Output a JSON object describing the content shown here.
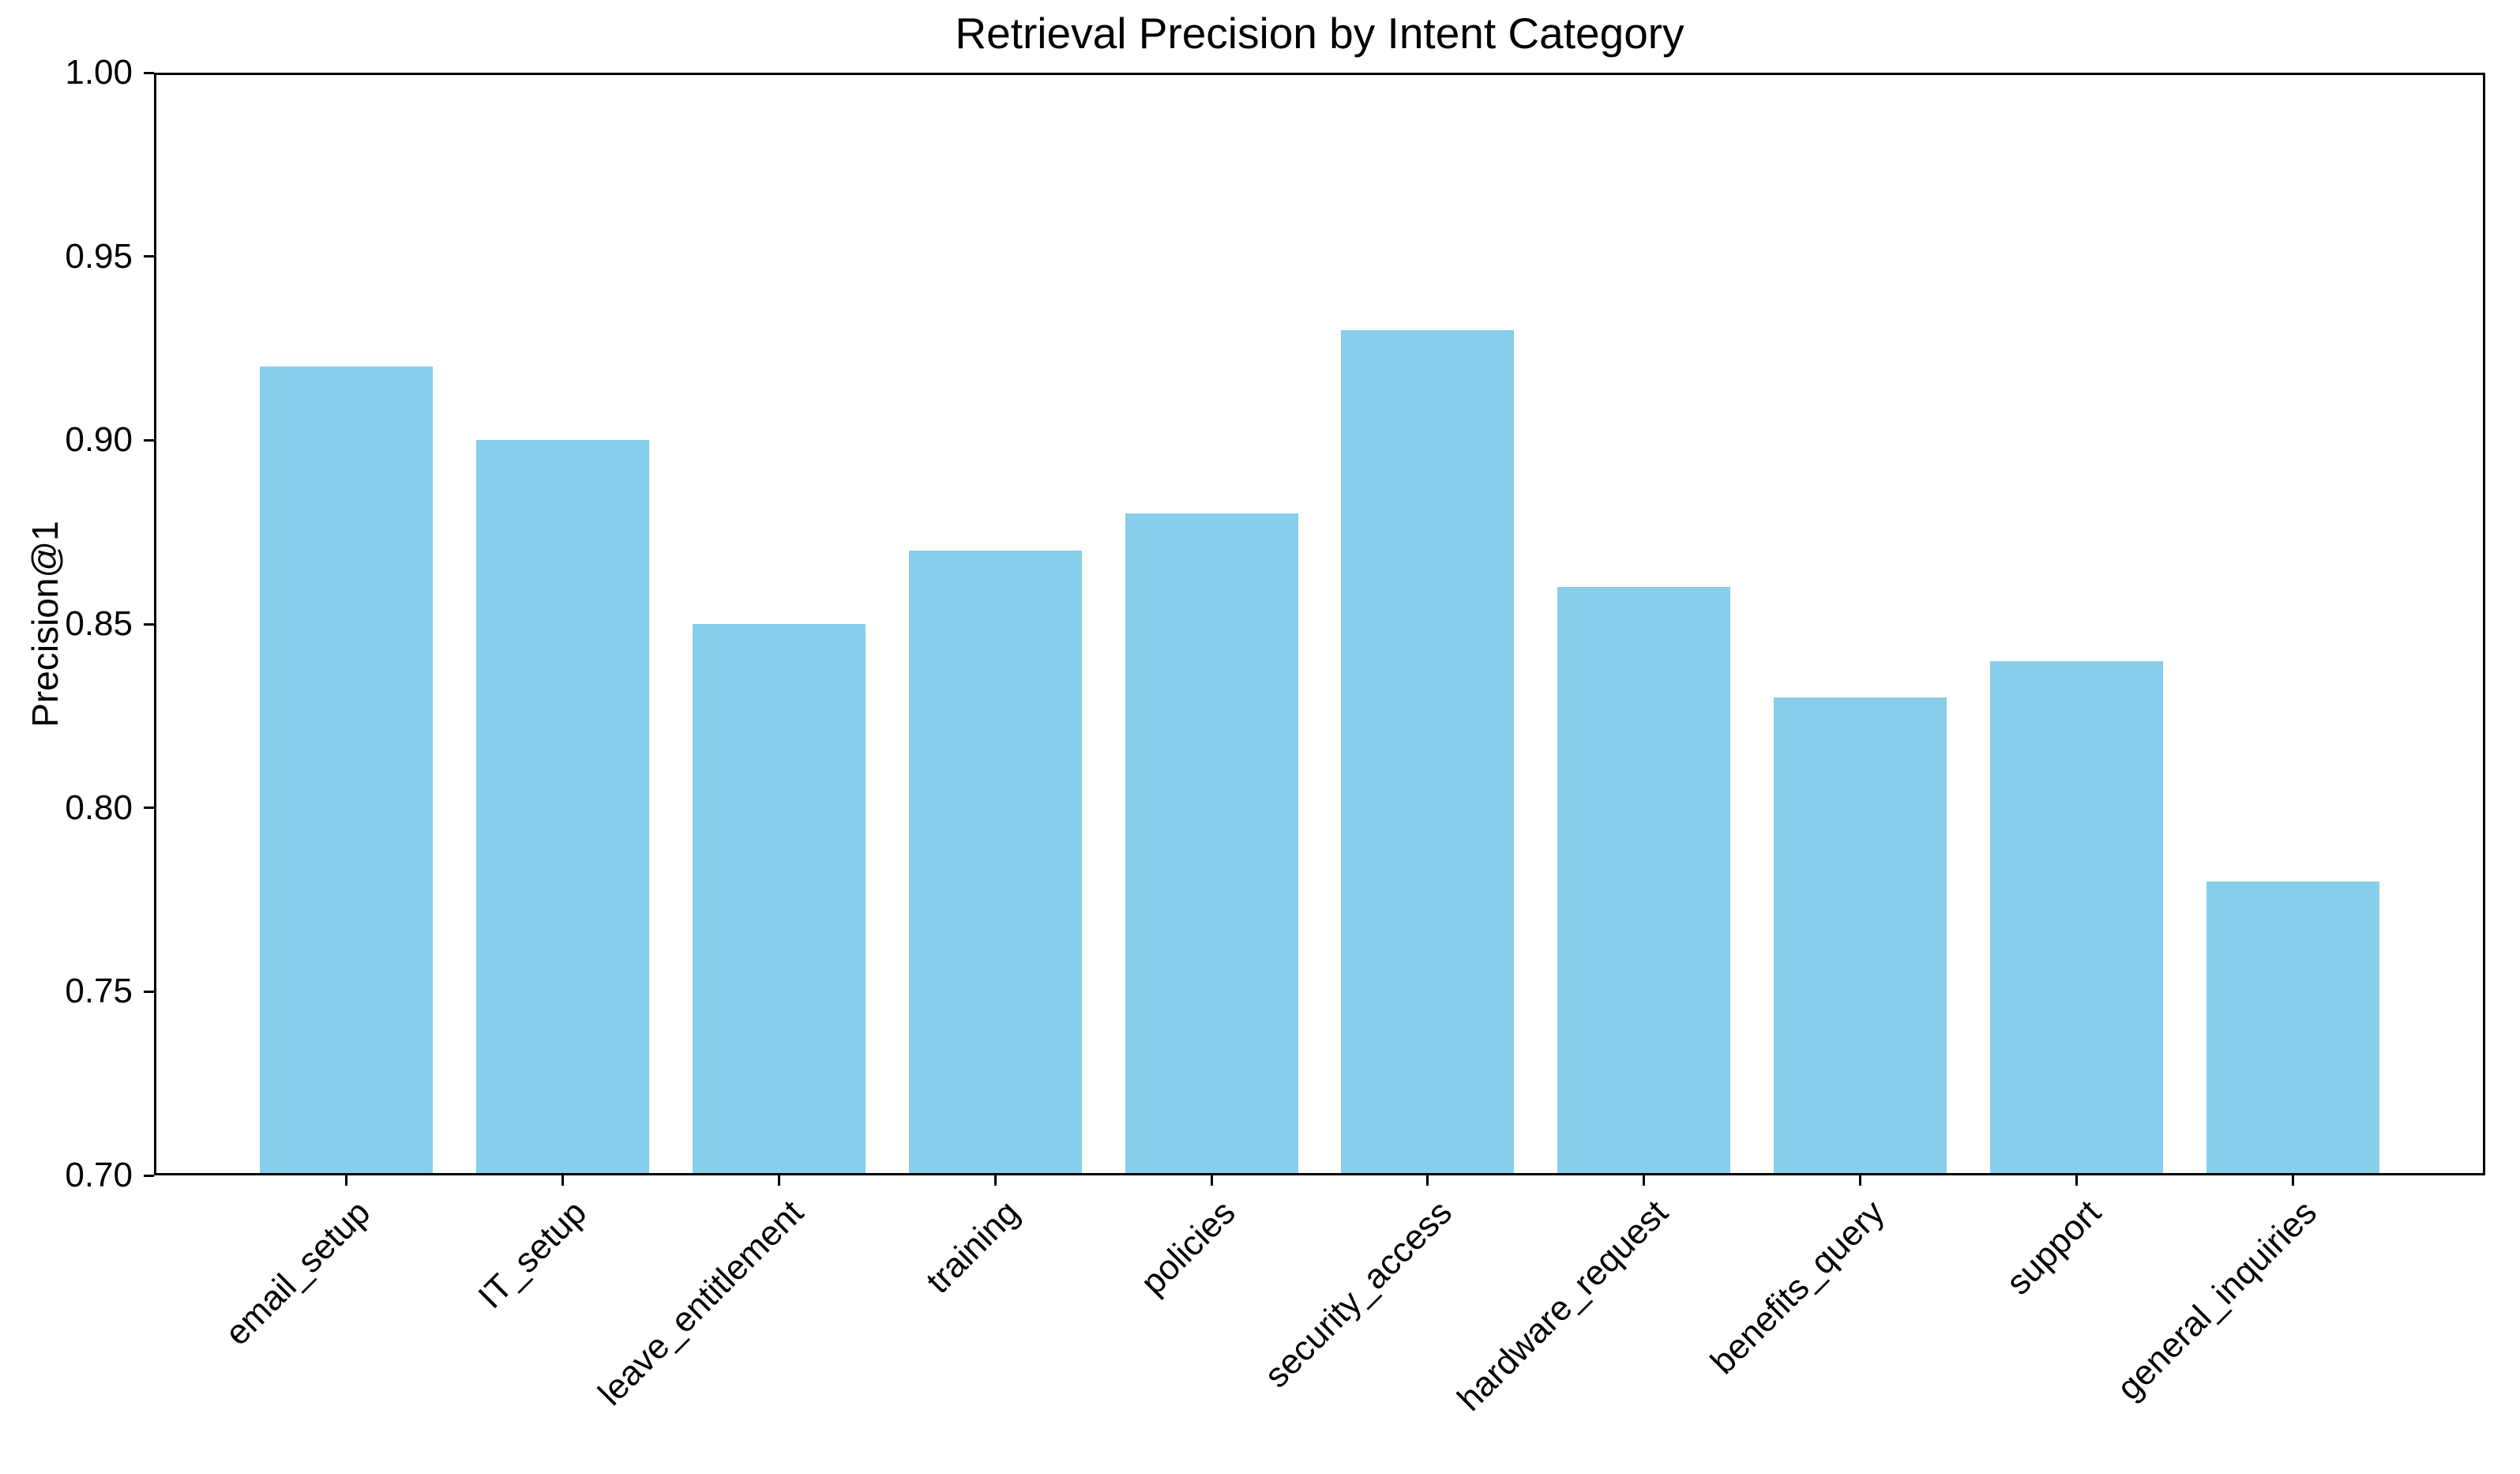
{
  "chart_data": {
    "type": "bar",
    "title": "Retrieval Precision by Intent Category",
    "xlabel": "",
    "ylabel": "Precision@1",
    "categories": [
      "email_setup",
      "IT_setup",
      "leave_entitlement",
      "training",
      "policies",
      "security_access",
      "hardware_request",
      "benefits_query",
      "support",
      "general_inquiries"
    ],
    "values": [
      0.92,
      0.9,
      0.85,
      0.87,
      0.88,
      0.93,
      0.86,
      0.83,
      0.84,
      0.78
    ],
    "ylim": [
      0.7,
      1.0
    ],
    "yticks": [
      "1.00",
      "0.95",
      "0.90",
      "0.85",
      "0.80",
      "0.75",
      "0.70"
    ],
    "bar_color": "#87ceeb",
    "grid": false,
    "legend": "none",
    "x_tick_rotation_deg": 45
  },
  "colors": {
    "bar": "#87ceeb",
    "text": "#000000",
    "background": "#ffffff",
    "axis": "#000000"
  }
}
